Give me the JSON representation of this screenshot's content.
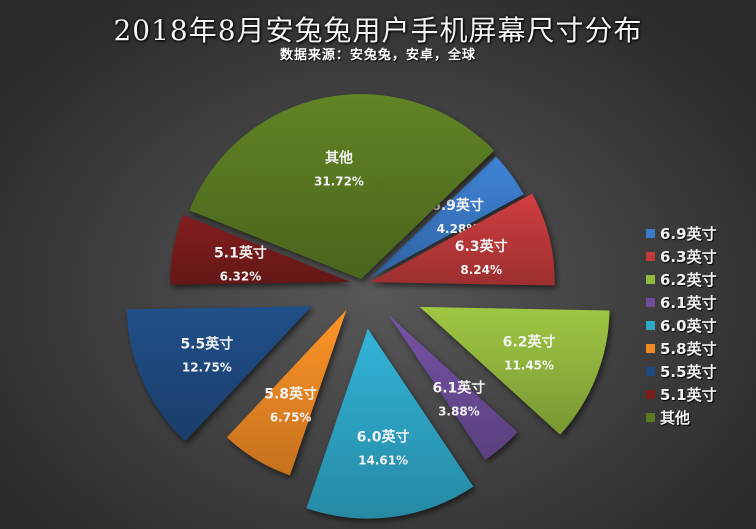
{
  "title": "2018年8月安兔兔用户手机屏幕尺寸分布",
  "subtitle": "数据来源：安兔兔，安卓，全球",
  "chart_data": {
    "type": "pie",
    "exploded": true,
    "title": "2018年8月安兔兔用户手机屏幕尺寸分布",
    "subtitle": "数据来源：安兔兔，安卓，全球",
    "categories": [
      "6.9英寸",
      "6.3英寸",
      "6.2英寸",
      "6.1英寸",
      "6.0英寸",
      "5.8英寸",
      "5.5英寸",
      "5.1英寸",
      "其他"
    ],
    "values": [
      4.28,
      8.24,
      11.45,
      3.88,
      14.61,
      6.75,
      12.75,
      6.32,
      31.72
    ],
    "value_labels": [
      "4.28%",
      "8.24%",
      "11.45%",
      "3.88%",
      "14.61%",
      "6.75%",
      "12.75%",
      "6.32%",
      "31.72%"
    ],
    "colors": [
      "#3a7ac8",
      "#c0393b",
      "#93b83e",
      "#6e4d9a",
      "#2ea7c8",
      "#f08a24",
      "#1e4a80",
      "#7a1c1c",
      "#5a7a22"
    ],
    "legend_position": "right",
    "start_angle_deg": 46
  },
  "legend": {
    "items": [
      {
        "label": "6.9英寸",
        "color": "#3a7ac8"
      },
      {
        "label": "6.3英寸",
        "color": "#c0393b"
      },
      {
        "label": "6.2英寸",
        "color": "#93b83e"
      },
      {
        "label": "6.1英寸",
        "color": "#6e4d9a"
      },
      {
        "label": "6.0英寸",
        "color": "#2ea7c8"
      },
      {
        "label": "5.8英寸",
        "color": "#f08a24"
      },
      {
        "label": "5.5英寸",
        "color": "#1e4a80"
      },
      {
        "label": "5.1英寸",
        "color": "#7a1c1c"
      },
      {
        "label": "其他",
        "color": "#5a7a22"
      }
    ]
  }
}
